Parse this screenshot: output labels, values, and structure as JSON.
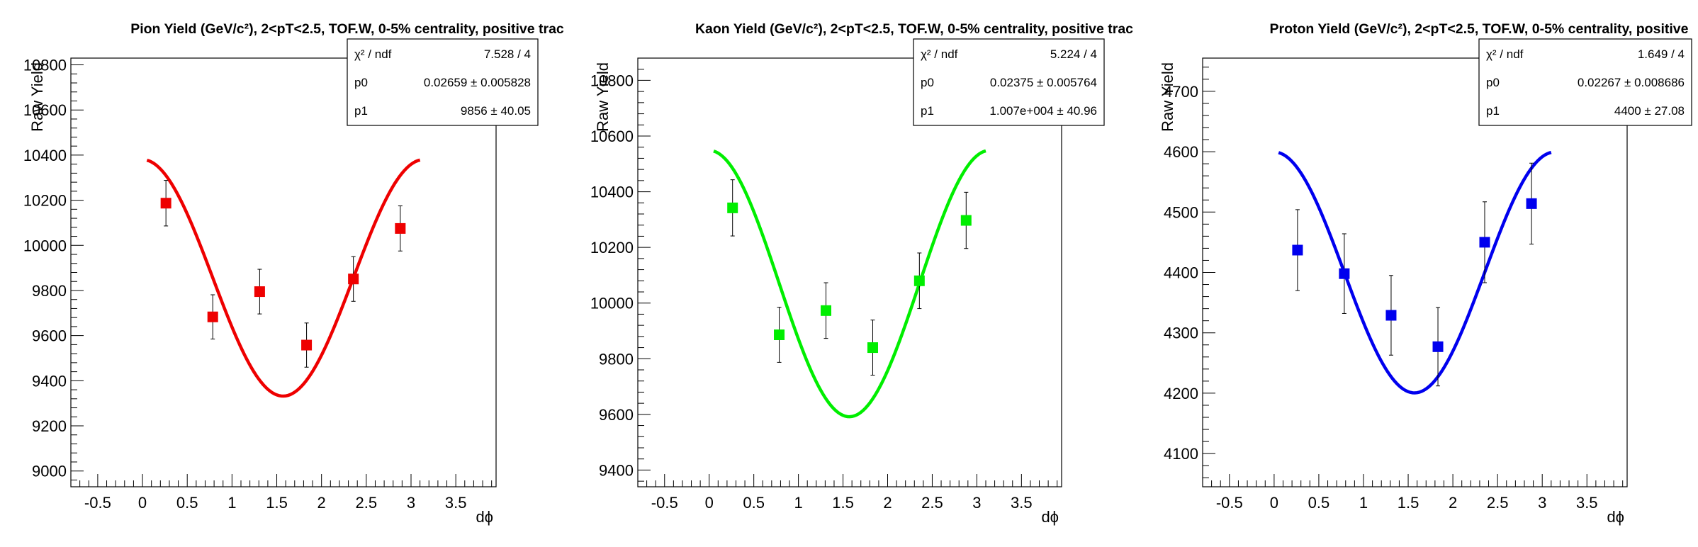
{
  "chart_data": [
    {
      "type": "scatter",
      "title": "Pion Yield (GeV/c²), 2<pT<2.5, TOF.W, 0-5% centrality, positive trac",
      "xlabel": "dϕ",
      "ylabel": "Raw Yield",
      "xlim": [
        -0.8,
        3.95
      ],
      "ylim": [
        8930,
        10830
      ],
      "xticks": [
        -0.5,
        0,
        0.5,
        1,
        1.5,
        2,
        2.5,
        3,
        3.5
      ],
      "xtick_labels": [
        "-0.5",
        "0",
        "0.5",
        "1",
        "1.5",
        "2",
        "2.5",
        "3",
        "3.5"
      ],
      "yticks": [
        9000,
        9200,
        9400,
        9600,
        9800,
        10000,
        10200,
        10400,
        10600,
        10800
      ],
      "ytick_labels": [
        "9000",
        "9200",
        "9400",
        "9600",
        "9800",
        "10000",
        "10200",
        "10400",
        "10600",
        "10800"
      ],
      "color": "#ee0000",
      "series": [
        {
          "x": [
            0.262,
            0.785,
            1.309,
            1.833,
            2.356,
            2.88
          ],
          "y": [
            10187,
            9683,
            9795,
            9558,
            9851,
            10075
          ],
          "yerr": [
            101,
            98,
            99,
            98,
            99,
            100
          ]
        }
      ],
      "fit": {
        "p0": 0.02659,
        "p1": 9856,
        "xrange": [
          0.05,
          3.1
        ],
        "stats": [
          {
            "label": "χ² / ndf",
            "value": "7.528 / 4"
          },
          {
            "label": "p0",
            "value": "0.02659 ± 0.005828"
          },
          {
            "label": "p1",
            "value": "9856 ± 40.05"
          }
        ]
      }
    },
    {
      "type": "scatter",
      "title": "Kaon Yield (GeV/c²), 2<pT<2.5, TOF.W, 0-5% centrality, positive trac",
      "xlabel": "dϕ",
      "ylabel": "Raw Yield",
      "xlim": [
        -0.8,
        3.95
      ],
      "ylim": [
        9340,
        10880
      ],
      "xticks": [
        -0.5,
        0,
        0.5,
        1,
        1.5,
        2,
        2.5,
        3,
        3.5
      ],
      "xtick_labels": [
        "-0.5",
        "0",
        "0.5",
        "1",
        "1.5",
        "2",
        "2.5",
        "3",
        "3.5"
      ],
      "yticks": [
        9400,
        9600,
        9800,
        10000,
        10200,
        10400,
        10600,
        10800
      ],
      "ytick_labels": [
        "9400",
        "9600",
        "9800",
        "10000",
        "10200",
        "10400",
        "10600",
        "10800"
      ],
      "color": "#00ee00",
      "series": [
        {
          "x": [
            0.262,
            0.785,
            1.309,
            1.833,
            2.356,
            2.88
          ],
          "y": [
            10342,
            9886,
            9973,
            9840,
            10080,
            10297
          ],
          "yerr": [
            101,
            99,
            100,
            99,
            100,
            101
          ]
        }
      ],
      "fit": {
        "p0": 0.02375,
        "p1": 10070,
        "xrange": [
          0.05,
          3.1
        ],
        "stats": [
          {
            "label": "χ² / ndf",
            "value": "5.224 / 4"
          },
          {
            "label": "p0",
            "value": "0.02375 ± 0.005764"
          },
          {
            "label": "p1",
            "value": "1.007e+004 ± 40.96"
          }
        ]
      }
    },
    {
      "type": "scatter",
      "title": "Proton Yield (GeV/c²), 2<pT<2.5, TOF.W, 0-5% centrality, positive",
      "xlabel": "dϕ",
      "ylabel": "Raw Yield",
      "xlim": [
        -0.8,
        3.95
      ],
      "ylim": [
        4045,
        4755
      ],
      "xticks": [
        -0.5,
        0,
        0.5,
        1,
        1.5,
        2,
        2.5,
        3,
        3.5
      ],
      "xtick_labels": [
        "-0.5",
        "0",
        "0.5",
        "1",
        "1.5",
        "2",
        "2.5",
        "3",
        "3.5"
      ],
      "yticks": [
        4100,
        4200,
        4300,
        4400,
        4500,
        4600,
        4700
      ],
      "ytick_labels": [
        "4100",
        "4200",
        "4300",
        "4400",
        "4500",
        "4600",
        "4700"
      ],
      "color": "#0000ee",
      "series": [
        {
          "x": [
            0.262,
            0.785,
            1.309,
            1.833,
            2.356,
            2.88
          ],
          "y": [
            4437,
            4398,
            4329,
            4277,
            4450,
            4514
          ],
          "yerr": [
            67,
            66,
            66,
            65,
            67,
            67
          ]
        }
      ],
      "fit": {
        "p0": 0.02267,
        "p1": 4400,
        "xrange": [
          0.05,
          3.1
        ],
        "stats": [
          {
            "label": "χ² / ndf",
            "value": "1.649 / 4"
          },
          {
            "label": "p0",
            "value": "0.02267 ± 0.008686"
          },
          {
            "label": "p1",
            "value": "4400 ± 27.08"
          }
        ]
      }
    }
  ]
}
